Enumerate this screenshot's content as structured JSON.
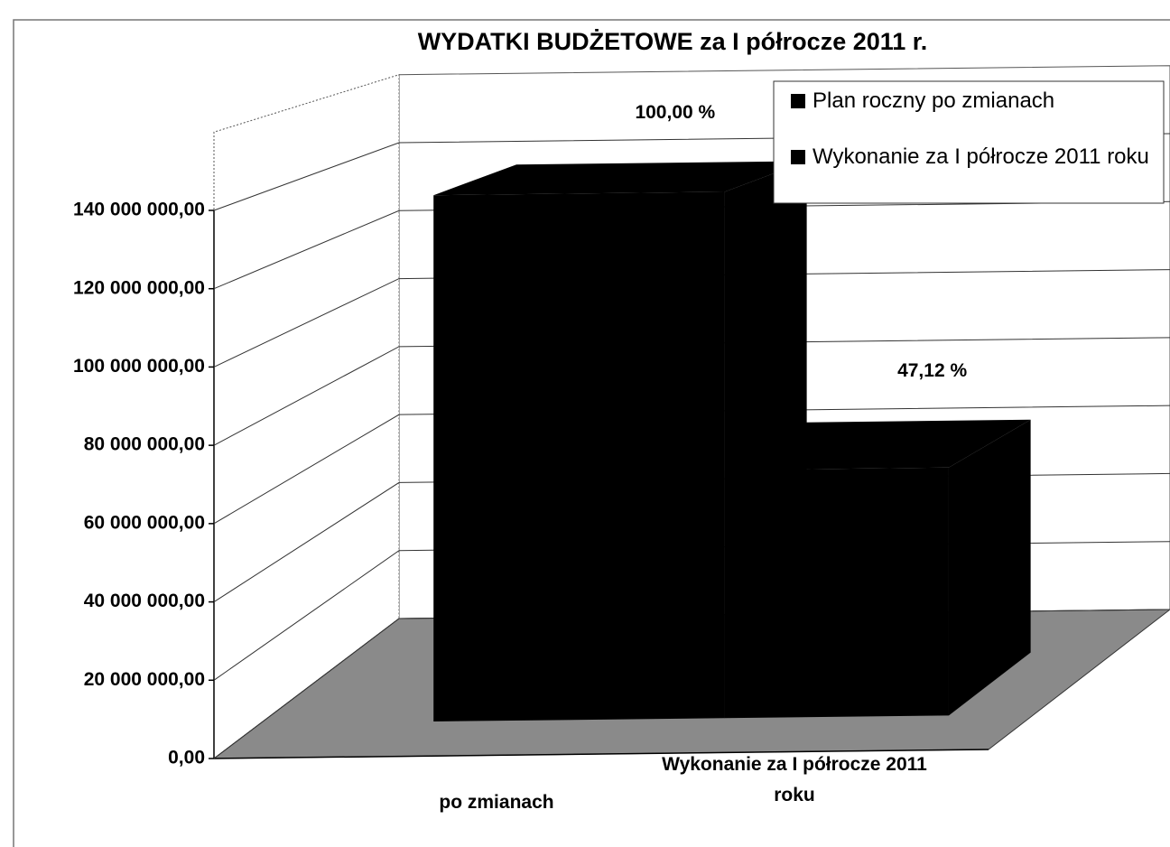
{
  "chart_data": {
    "type": "bar3d",
    "title": "WYDATKI BUDŻETOWE za I półrocze 2011 r.",
    "categories": [
      "po zmianach",
      "Wykonanie za I półrocze 2011 roku"
    ],
    "series": [
      {
        "name": "Plan roczny po zmianach",
        "color": "#000000",
        "values": [
          139000000,
          null
        ]
      },
      {
        "name": "Wykonanie za I półrocze 2011 roku",
        "color": "#000000",
        "values": [
          null,
          65500000
        ]
      }
    ],
    "annotations": [
      "100,00 %",
      "47,12 %"
    ],
    "ylim": [
      0,
      160000000
    ],
    "yticks": [
      {
        "value": 0,
        "label": "0,00"
      },
      {
        "value": 20000000,
        "label": "20 000 000,00"
      },
      {
        "value": 40000000,
        "label": "40 000 000,00"
      },
      {
        "value": 60000000,
        "label": "60 000 000,00"
      },
      {
        "value": 80000000,
        "label": "80 000 000,00"
      },
      {
        "value": 100000000,
        "label": "100 000 000,00"
      },
      {
        "value": 120000000,
        "label": "120 000 000,00"
      },
      {
        "value": 140000000,
        "label": "140 000 000,00"
      }
    ],
    "grid": true,
    "legend": "top-right"
  }
}
